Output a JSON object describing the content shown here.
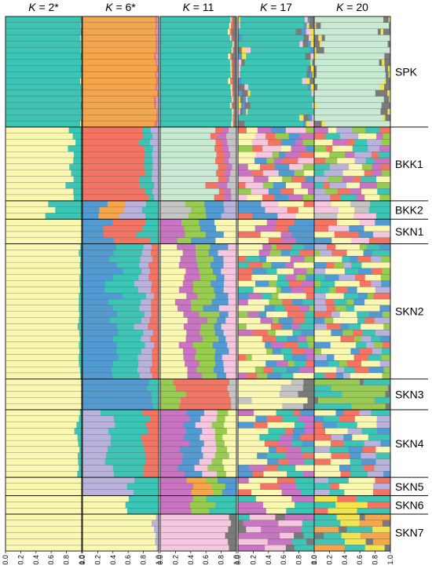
{
  "chart_data": {
    "type": "bar",
    "orientation": "horizontal",
    "stacked": true,
    "panels": [
      {
        "label_prefix": "K",
        "label_suffix": " = 2*",
        "k": 2
      },
      {
        "label_prefix": "K",
        "label_suffix": " = 6*",
        "k": 6
      },
      {
        "label_prefix": "K",
        "label_suffix": " = 11",
        "k": 11
      },
      {
        "label_prefix": "K",
        "label_suffix": " = 17",
        "k": 17
      },
      {
        "label_prefix": "K",
        "label_suffix": " = 20",
        "k": 20
      }
    ],
    "populations": [
      {
        "name": "SPK",
        "n": 18
      },
      {
        "name": "BKK1",
        "n": 12
      },
      {
        "name": "BKK2",
        "n": 3
      },
      {
        "name": "SKN1",
        "n": 4
      },
      {
        "name": "SKN2",
        "n": 22
      },
      {
        "name": "SKN3",
        "n": 5
      },
      {
        "name": "SKN4",
        "n": 11
      },
      {
        "name": "SKN5",
        "n": 3
      },
      {
        "name": "SKN6",
        "n": 3
      },
      {
        "name": "SKN7",
        "n": 6
      }
    ],
    "x_ticks": [
      "0.0",
      "0.2",
      "0.4",
      "0.6",
      "0.8",
      "1.0"
    ],
    "xlim": [
      0,
      1
    ],
    "palette": {
      "teal": "#3cc4b4",
      "yellow": "#faf7b0",
      "orange": "#f6a64a",
      "salmon": "#f47464",
      "blue": "#529bd2",
      "lavender": "#b9b2dc",
      "mint": "#c8ead2",
      "pink": "#f6c6de",
      "magenta": "#c874c2",
      "green": "#98cc50",
      "grey": "#c4c4c4",
      "darkgrey": "#7a7a7a",
      "gold": "#f2e44e"
    }
  }
}
